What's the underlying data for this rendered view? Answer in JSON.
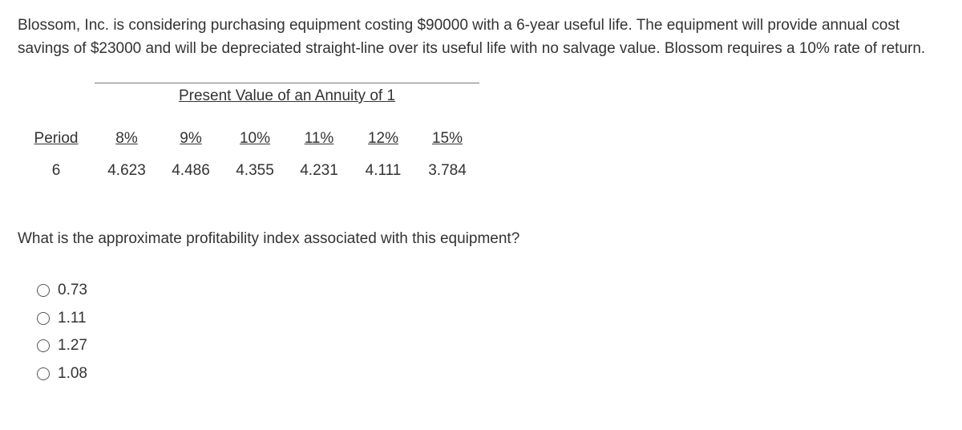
{
  "problem": {
    "text": "Blossom, Inc. is considering purchasing equipment costing $90000 with a 6-year useful life. The equipment will provide annual cost savings of $23000 and will be depreciated straight-line over its useful life with no salvage value. Blossom requires a 10% rate of return."
  },
  "table": {
    "title": "Present Value of an Annuity of 1",
    "columns": {
      "period_label": "Period",
      "rates": [
        "8%",
        "9%",
        "10%",
        "11%",
        "12%",
        "15%"
      ]
    },
    "row": {
      "period": "6",
      "values": [
        "4.623",
        "4.486",
        "4.355",
        "4.231",
        "4.111",
        "3.784"
      ]
    },
    "column_widths": {
      "period": 96,
      "rate": 80
    },
    "colors": {
      "text": "#333333",
      "border": "#777777",
      "background": "#ffffff"
    },
    "font_size": 19
  },
  "question": {
    "text": "What is the approximate profitability index associated with this equipment?"
  },
  "options": [
    {
      "label": "0.73"
    },
    {
      "label": "1.11"
    },
    {
      "label": "1.27"
    },
    {
      "label": "1.08"
    }
  ]
}
